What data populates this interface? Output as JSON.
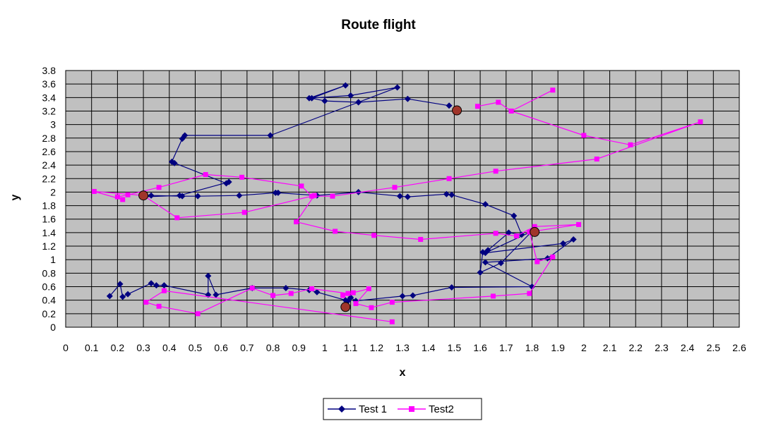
{
  "chart_data": {
    "type": "scatter",
    "title": "Route flight",
    "xlabel": "x",
    "ylabel": "y",
    "xlim": [
      0,
      2.6
    ],
    "ylim": [
      0,
      3.8
    ],
    "xticks": [
      "0",
      "0.1",
      "0.2",
      "0.3",
      "0.4",
      "0.5",
      "0.6",
      "0.7",
      "0.8",
      "0.9",
      "1",
      "1.1",
      "1.2",
      "1.3",
      "1.4",
      "1.5",
      "1.6",
      "1.7",
      "1.8",
      "1.9",
      "2",
      "2.1",
      "2.2",
      "2.3",
      "2.4",
      "2.5",
      "2.6"
    ],
    "yticks": [
      "0",
      "0.2",
      "0.4",
      "0.6",
      "0.8",
      "1",
      "1.2",
      "1.4",
      "1.6",
      "1.8",
      "2",
      "2.2",
      "2.4",
      "2.6",
      "2.8",
      "3",
      "3.2",
      "3.4",
      "3.6",
      "3.8"
    ],
    "grid": true,
    "legend_position": "bottom",
    "plot_background": "#c0c0c0",
    "series": [
      {
        "name": "Test 1",
        "color": "#000080",
        "marker": "diamond",
        "x": [
          1.48,
          1.32,
          1.13,
          1.0,
          0.95,
          1.08,
          0.94,
          1.1,
          1.28,
          1.13,
          0.79,
          0.46,
          0.45,
          0.41,
          0.42,
          0.62,
          0.63,
          0.44,
          0.3,
          0.33,
          0.45,
          0.51,
          0.67,
          0.81,
          0.82,
          0.97,
          1.13,
          1.29,
          1.32,
          1.47,
          1.49,
          1.62,
          1.73,
          1.76,
          1.71,
          1.63,
          1.61,
          1.6,
          1.68,
          1.8,
          1.62,
          1.92,
          1.96,
          1.86,
          1.62,
          1.8,
          1.49,
          1.34,
          1.3,
          1.12,
          1.1,
          1.09,
          1.08,
          0.97,
          0.94,
          0.85,
          0.72,
          0.58,
          0.55,
          0.55,
          0.38,
          0.35,
          0.33,
          0.24,
          0.22,
          0.21,
          0.17
        ],
        "y": [
          3.28,
          3.38,
          3.33,
          3.35,
          3.39,
          3.58,
          3.39,
          3.43,
          3.55,
          3.33,
          2.84,
          2.84,
          2.79,
          2.45,
          2.43,
          2.13,
          2.15,
          1.95,
          1.93,
          1.95,
          1.94,
          1.94,
          1.95,
          1.99,
          1.99,
          1.95,
          2.0,
          1.94,
          1.93,
          1.97,
          1.96,
          1.82,
          1.65,
          1.37,
          1.4,
          1.14,
          1.11,
          0.81,
          0.95,
          1.42,
          1.1,
          1.24,
          1.3,
          1.02,
          0.96,
          0.6,
          0.59,
          0.47,
          0.46,
          0.39,
          0.44,
          0.39,
          0.4,
          0.52,
          0.55,
          0.58,
          0.58,
          0.48,
          0.76,
          0.48,
          0.62,
          0.62,
          0.65,
          0.49,
          0.45,
          0.64,
          0.46
        ]
      },
      {
        "name": "Test2",
        "color": "#ff00ff",
        "marker": "square",
        "x": [
          1.59,
          1.67,
          1.72,
          1.88,
          1.72,
          2.0,
          2.18,
          2.45,
          2.05,
          1.66,
          1.48,
          1.27,
          1.03,
          0.95,
          0.91,
          0.68,
          0.54,
          0.36,
          0.24,
          0.2,
          0.22,
          0.11,
          0.3,
          0.43,
          0.69,
          0.96,
          0.89,
          1.04,
          1.19,
          1.37,
          1.66,
          1.74,
          1.81,
          1.98,
          1.79,
          1.82,
          1.88,
          1.79,
          1.65,
          1.26,
          1.18,
          1.12,
          1.17,
          1.11,
          1.07,
          1.09,
          0.95,
          0.87,
          0.8,
          0.72,
          0.51,
          0.36,
          0.31,
          0.38,
          1.26
        ],
        "y": [
          3.27,
          3.33,
          3.2,
          3.51,
          3.2,
          2.84,
          2.7,
          3.04,
          2.49,
          2.31,
          2.2,
          2.07,
          1.94,
          1.94,
          2.09,
          2.22,
          2.26,
          2.07,
          1.96,
          1.93,
          1.89,
          2.01,
          1.95,
          1.62,
          1.7,
          1.95,
          1.56,
          1.42,
          1.36,
          1.3,
          1.39,
          1.35,
          1.49,
          1.52,
          1.41,
          0.97,
          1.04,
          0.5,
          0.46,
          0.37,
          0.29,
          0.35,
          0.57,
          0.51,
          0.47,
          0.5,
          0.57,
          0.5,
          0.47,
          0.58,
          0.2,
          0.31,
          0.37,
          0.54,
          0.08
        ]
      },
      {
        "name": "",
        "color": "#a0352a",
        "marker": "circle",
        "x": [
          0.3,
          1.51,
          1.81,
          1.08
        ],
        "y": [
          1.95,
          3.21,
          1.41,
          0.3
        ]
      }
    ]
  }
}
